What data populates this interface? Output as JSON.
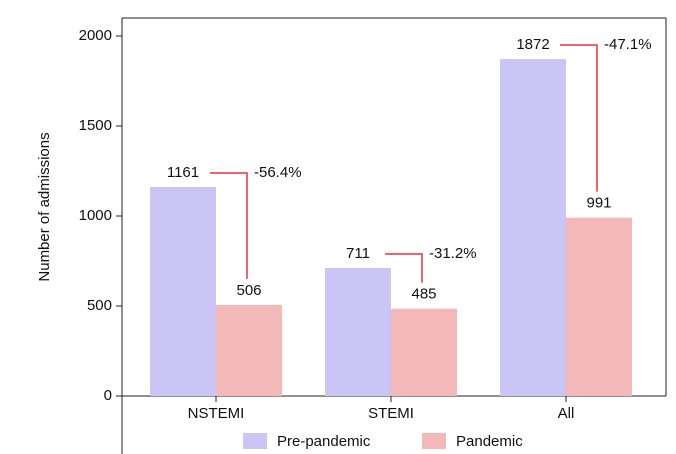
{
  "chart_data": {
    "type": "bar",
    "y_label": "Number of admissions",
    "categories": [
      "NSTEMI",
      "STEMI",
      "All"
    ],
    "series": [
      {
        "name": "Pre-pandemic",
        "color": "#cbc5f6",
        "values": [
          1161,
          711,
          1872
        ]
      },
      {
        "name": "Pandemic",
        "color": "#f3b9b9",
        "values": [
          506,
          485,
          991
        ]
      }
    ],
    "annotations": [
      "-56.4%",
      "-31.2%",
      "-47.1%"
    ],
    "annotation_color": "#e8323c",
    "ylim": [
      0,
      2100
    ],
    "yticks": [
      0,
      500,
      1000,
      1500,
      2000
    ],
    "grid": false,
    "legend": "bottom"
  }
}
